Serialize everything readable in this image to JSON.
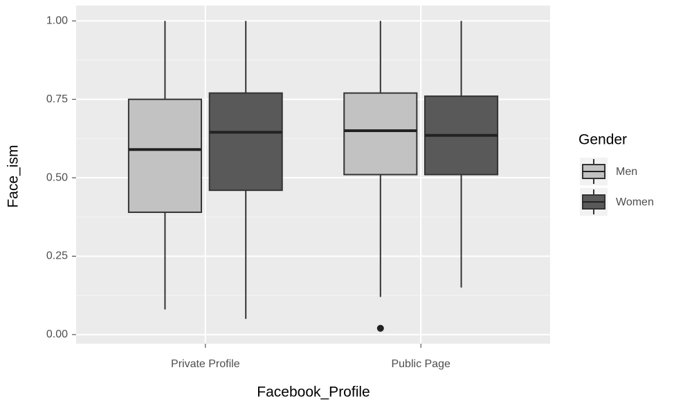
{
  "chart_data": {
    "type": "boxplot",
    "x_label": "Facebook_Profile",
    "y_label": "Face_ism",
    "categories": [
      "Private Profile",
      "Public Page"
    ],
    "legend_title": "Gender",
    "legend_position": "right",
    "grid": true,
    "ylim": [
      -0.029,
      1.049
    ],
    "yticks": [
      {
        "value": 0,
        "label": "0.00"
      },
      {
        "value": 0.25,
        "label": "0.25"
      },
      {
        "value": 0.5,
        "label": "0.50"
      },
      {
        "value": 0.75,
        "label": "0.75"
      },
      {
        "value": 1,
        "label": "1.00"
      }
    ],
    "series": [
      {
        "name": "Men",
        "color": "#c2c2c2",
        "min": [
          0.08,
          0.12
        ],
        "q1": [
          0.39,
          0.51
        ],
        "median": [
          0.59,
          0.65
        ],
        "q3": [
          0.75,
          0.77
        ],
        "max": [
          1.0,
          1.0
        ],
        "outliers": [
          [],
          [
            0.02
          ]
        ]
      },
      {
        "name": "Women",
        "color": "#595959",
        "min": [
          0.05,
          0.15
        ],
        "q1": [
          0.46,
          0.51
        ],
        "median": [
          0.645,
          0.635
        ],
        "q3": [
          0.77,
          0.76
        ],
        "max": [
          1.0,
          1.0
        ],
        "outliers": [
          [],
          []
        ]
      }
    ]
  }
}
